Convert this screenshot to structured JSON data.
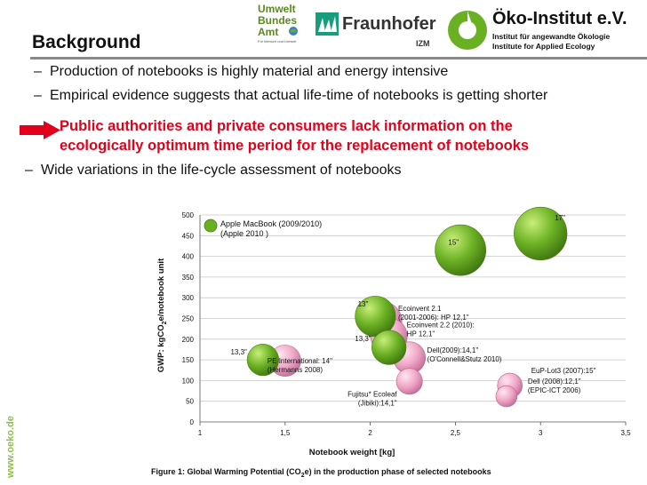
{
  "header": {
    "logo_uba": [
      "Umwelt",
      "Bundes",
      "Amt"
    ],
    "logo_uba_tagline": "Für Mensch und Umwelt",
    "logo_fraunhofer": "Fraunhofer",
    "logo_fraunhofer_sub": "IZM",
    "logo_oeko": "Öko-Institut e.V.",
    "logo_oeko_sub1": "Institut für angewandte Ökologie",
    "logo_oeko_sub2": "Institute for Applied Ecology"
  },
  "slide": {
    "title": "Background",
    "bullets": [
      "Production of notebooks is highly material and energy intensive",
      "Empirical evidence suggests that actual life-time of notebooks is getting shorter"
    ],
    "highlight_lines": [
      "Public authorities and private consumers lack information on the",
      "ecologically optimum time period for the replacement of notebooks"
    ],
    "bullet3": "Wide variations in the life-cycle assessment of notebooks",
    "side_url": "www.oeko.de",
    "caption_pre": "Figure 1: Global Warming Potential (CO",
    "caption_sub": "2",
    "caption_post": "e) in the production phase of selected notebooks"
  },
  "colors": {
    "green": "#6ab023",
    "pink": "#f0a8c8",
    "red": "#e3001b"
  },
  "chart_data": {
    "type": "scatter",
    "subtype": "bubble",
    "xlabel": "Notebook weight [kg]",
    "ylabel_pre": "GWP: kgCO",
    "ylabel_sub": "2",
    "ylabel_post": "e/notebook unit",
    "xlim": [
      1,
      3.5
    ],
    "ylim": [
      0,
      500
    ],
    "x_ticks": [
      1,
      1.5,
      2,
      2.5,
      3,
      3.5
    ],
    "x_tick_labels": [
      "1",
      "1,5",
      "2",
      "2,5",
      "3",
      "3,5"
    ],
    "y_ticks": [
      0,
      50,
      100,
      150,
      200,
      250,
      300,
      350,
      400,
      450,
      500
    ],
    "legend": [
      {
        "label1": "Apple MacBook (2009/2010)",
        "label2": "(Apple 2010 )",
        "color": "green"
      },
      {
        "label1": "",
        "label2": "",
        "color": "pink"
      }
    ],
    "points": [
      {
        "x": 3.0,
        "y": 455,
        "label": "17\"",
        "series": "green"
      },
      {
        "x": 2.53,
        "y": 415,
        "label": "15\"",
        "series": "green"
      },
      {
        "x": 2.03,
        "y": 255,
        "label": "13\"",
        "series": "green"
      },
      {
        "x": 2.11,
        "y": 180,
        "label": "13,3\"",
        "series": "green"
      },
      {
        "x": 1.37,
        "y": 150,
        "label": "13,3\"",
        "series": "green"
      },
      {
        "x": 2.07,
        "y": 243,
        "label": "Ecoinvent 2.1 (2001-2006): HP 12,1\"",
        "series": "pink"
      },
      {
        "x": 2.11,
        "y": 207,
        "label": "Ecoinvent 2.2 (2010): HP 12,1\"",
        "series": "pink"
      },
      {
        "x": 2.23,
        "y": 155,
        "label": "Dell(2009):14,1\" (O'Connell&Stutz 2010)",
        "series": "pink"
      },
      {
        "x": 1.5,
        "y": 148,
        "label": "PE International: 14\" (Hermanns 2008)",
        "series": "pink"
      },
      {
        "x": 2.23,
        "y": 98,
        "label": "Fujitsu* Ecoleaf (Jibiki):14,1\"",
        "series": "pink"
      },
      {
        "x": 2.82,
        "y": 88,
        "label": "EuP-Lot3 (2007):15\"",
        "series": "pink"
      },
      {
        "x": 2.8,
        "y": 62,
        "label": "Dell (2008):12,1\" (EPIC-ICT 2006)",
        "series": "pink"
      }
    ]
  }
}
